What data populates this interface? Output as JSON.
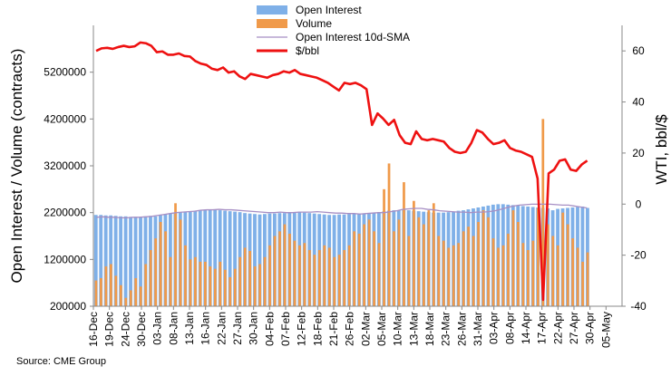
{
  "chart_data": {
    "type": "bar+line",
    "ylabel_left": "Open Interest / Volume (contracts)",
    "ylabel_right": "WTI, bbl/$",
    "y_left_range": [
      200000,
      6200000
    ],
    "y_left_ticks": [
      "200000",
      "1200000",
      "2200000",
      "3200000",
      "4200000",
      "5200000"
    ],
    "y_right_range": [
      -40,
      70
    ],
    "y_right_ticks": [
      "-40",
      "-20",
      "0",
      "20",
      "40",
      "60"
    ],
    "x_tick_labels": [
      "16-Dec",
      "19-Dec",
      "24-Dec",
      "30-Dec",
      "03-Jan",
      "08-Jan",
      "13-Jan",
      "16-Jan",
      "22-Jan",
      "27-Jan",
      "30-Jan",
      "04-Feb",
      "07-Feb",
      "12-Feb",
      "18-Feb",
      "21-Feb",
      "26-Feb",
      "02-Mar",
      "05-Mar",
      "10-Mar",
      "13-Mar",
      "18-Mar",
      "23-Mar",
      "26-Mar",
      "31-Mar",
      "03-Apr",
      "08-Apr",
      "14-Apr",
      "17-Apr",
      "22-Apr",
      "27-Apr",
      "30-Apr",
      "05-May"
    ],
    "legend": [
      {
        "label": "Open Interest",
        "color": "#7fb0e8",
        "kind": "bar"
      },
      {
        "label": "Volume",
        "color": "#f09a4a",
        "kind": "bar"
      },
      {
        "label": "Open Interest 10d-SMA",
        "color": "#a78fc4",
        "kind": "line"
      },
      {
        "label": "$/bbl",
        "color": "#ee1111",
        "kind": "line"
      }
    ],
    "series": [
      {
        "name": "Open Interest",
        "values": [
          2150000,
          2150000,
          2140000,
          2140000,
          2130000,
          2120000,
          2120000,
          2110000,
          2110000,
          2110000,
          2120000,
          2130000,
          2120000,
          2150000,
          2170000,
          2180000,
          2200000,
          2210000,
          2220000,
          2230000,
          2240000,
          2250000,
          2250000,
          2260000,
          2260000,
          2250000,
          2240000,
          2230000,
          2220000,
          2210000,
          2190000,
          2180000,
          2170000,
          2160000,
          2170000,
          2180000,
          2180000,
          2190000,
          2190000,
          2200000,
          2200000,
          2210000,
          2200000,
          2190000,
          2180000,
          2170000,
          2160000,
          2150000,
          2150000,
          2160000,
          2160000,
          2170000,
          2180000,
          2180000,
          2180000,
          2190000,
          2200000,
          2210000,
          2230000,
          2240000,
          2250000,
          2250000,
          2260000,
          2250000,
          2240000,
          2230000,
          2220000,
          2210000,
          2200000,
          2200000,
          2200000,
          2210000,
          2220000,
          2240000,
          2250000,
          2270000,
          2290000,
          2310000,
          2330000,
          2350000,
          2370000,
          2380000,
          2380000,
          2370000,
          2360000,
          2350000,
          2340000,
          2330000,
          2320000,
          2310000,
          2300000,
          2290000,
          2250000,
          2280000,
          2290000,
          2300000,
          2310000,
          2320000,
          2330000,
          2300000
        ]
      },
      {
        "name": "Volume",
        "values": [
          750000,
          800000,
          1050000,
          1100000,
          850000,
          650000,
          380000,
          540000,
          800000,
          620000,
          1100000,
          1400000,
          1650000,
          2000000,
          1800000,
          1250000,
          2400000,
          2050000,
          1500000,
          1200000,
          1250000,
          1150000,
          1150000,
          1050000,
          1000000,
          1150000,
          980000,
          820000,
          1000000,
          1250000,
          1450000,
          1380000,
          1050000,
          1100000,
          1250000,
          1500000,
          1700000,
          1800000,
          1950000,
          1750000,
          1600000,
          1500000,
          1550000,
          1400000,
          1300000,
          1400000,
          1500000,
          1450000,
          1250000,
          1300000,
          1400000,
          1500000,
          1800000,
          1750000,
          1950000,
          2050000,
          1800000,
          1550000,
          2700000,
          3250000,
          1800000,
          2050000,
          2850000,
          1700000,
          2450000,
          2100000,
          1950000,
          2250000,
          2400000,
          1700000,
          1600000,
          1450000,
          1500000,
          1550000,
          1800000,
          1900000,
          1700000,
          2000000,
          2250000,
          2100000,
          1650000,
          1450000,
          1500000,
          1750000,
          2250000,
          2000000,
          1550000,
          1400000,
          1600000,
          2300000,
          4200000,
          1950000,
          1700000,
          1500000,
          2200000,
          1950000,
          1650000,
          1450000,
          1150000,
          1350000
        ]
      },
      {
        "name": "Open Interest 10d-SMA",
        "values": [
          2100000,
          2110000,
          2100000,
          2100000,
          2090000,
          2090000,
          2100000,
          2100000,
          2110000,
          2120000,
          2140000,
          2160000,
          2180000,
          2200000,
          2210000,
          2220000,
          2230000,
          2250000,
          2260000,
          2260000,
          2270000,
          2260000,
          2260000,
          2250000,
          2240000,
          2230000,
          2220000,
          2210000,
          2200000,
          2200000,
          2210000,
          2200000,
          2200000,
          2210000,
          2210000,
          2210000,
          2220000,
          2210000,
          2200000,
          2190000,
          2190000,
          2180000,
          2180000,
          2170000,
          2180000,
          2190000,
          2200000,
          2200000,
          2220000,
          2240000,
          2270000,
          2280000,
          2290000,
          2290000,
          2270000,
          2260000,
          2240000,
          2230000,
          2220000,
          2210000,
          2210000,
          2200000,
          2210000,
          2210000,
          2220000,
          2240000,
          2270000,
          2310000,
          2340000,
          2360000,
          2370000,
          2380000,
          2380000,
          2380000,
          2380000,
          2370000,
          2360000,
          2360000,
          2340000,
          2320000,
          2300000
        ]
      },
      {
        "name": "$/bbl",
        "values": [
          60.0,
          61.0,
          61.2,
          60.8,
          61.5,
          62.0,
          61.5,
          61.8,
          63.3,
          63.0,
          62.0,
          59.5,
          59.8,
          58.5,
          58.5,
          59.0,
          58.0,
          57.8,
          56.0,
          55.0,
          54.5,
          53.0,
          52.5,
          53.5,
          51.5,
          52.0,
          50.0,
          49.0,
          51.0,
          50.5,
          50.0,
          49.5,
          50.5,
          51.0,
          52.0,
          51.5,
          52.5,
          51.0,
          50.5,
          50.0,
          49.5,
          48.5,
          47.5,
          46.0,
          44.5,
          47.5,
          47.0,
          47.5,
          46.5,
          45.0,
          31.0,
          35.5,
          33.5,
          31.0,
          33.0,
          27.0,
          24.0,
          23.5,
          28.5,
          25.5,
          25.0,
          25.5,
          25.0,
          24.5,
          22.0,
          20.5,
          20.0,
          20.5,
          24.0,
          29.0,
          28.0,
          25.5,
          23.5,
          24.0,
          25.0,
          22.0,
          21.0,
          20.5,
          19.5,
          18.5,
          10.0,
          -37.5,
          12.0,
          13.5,
          17.0,
          17.5,
          13.5,
          13.0,
          15.5,
          17.0
        ]
      }
    ]
  },
  "source_text": "Source: CME Group"
}
